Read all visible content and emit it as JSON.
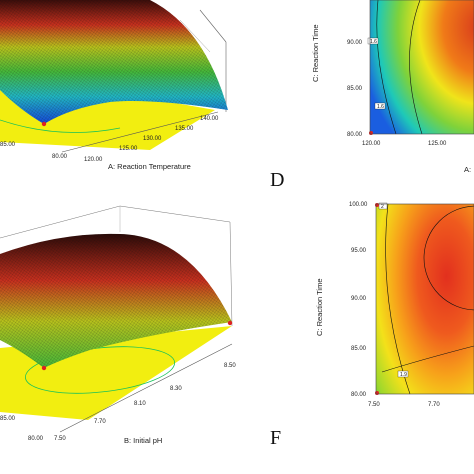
{
  "colors": {
    "surface_low": "#1446d8",
    "surface_mid": "#44b83a",
    "surface_high": "#c8301e",
    "surface_top": "#3a0d0a",
    "floor": "#f2ee10",
    "contour_red": "#e63222",
    "contour_green": "#17c25a",
    "mesh": "#0a0a0a"
  },
  "panels": {
    "top_left": {
      "x_axis_label": "A: Reaction Temperature",
      "x_ticks": [
        "120.00",
        "125.00",
        "130.00",
        "135.00",
        "140.00"
      ],
      "y_ticks": [
        "80.00",
        "85.00"
      ]
    },
    "top_right": {
      "y_axis_label": "C: Reaction Time",
      "y_ticks": [
        "80.00",
        "85.00",
        "90.00"
      ],
      "x_ticks": [
        "120.00",
        "125.00"
      ],
      "x_axis_label_partial": "A:",
      "contour_labels": [
        "1.6",
        "1.6"
      ]
    },
    "bottom_left": {
      "x_axis_label": "B: Initial pH",
      "x_ticks": [
        "7.50",
        "7.70",
        "8.10",
        "8.30",
        "8.50"
      ],
      "y_ticks": [
        "80.00",
        "85.00"
      ]
    },
    "bottom_right": {
      "y_axis_label": "C: Reaction Time",
      "y_ticks": [
        "80.00",
        "85.00",
        "90.00",
        "95.00",
        "100.00"
      ],
      "x_ticks": [
        "7.50",
        "7.70"
      ],
      "contour_labels": [
        "1.9",
        "2"
      ]
    },
    "letters": [
      "D",
      "F"
    ]
  },
  "chart_data": [
    {
      "type": "surface",
      "x_label": "A: Reaction Temperature",
      "x_ticks": [
        120,
        125,
        130,
        135,
        140
      ],
      "y_ticks": [
        80,
        85
      ]
    },
    {
      "type": "contour",
      "x_ticks": [
        120,
        125
      ],
      "y_label": "C: Reaction Time",
      "y_ticks": [
        80,
        85,
        90
      ],
      "contour_levels": [
        1.6,
        1.6
      ]
    },
    {
      "type": "surface",
      "x_label": "B: Initial pH",
      "x_ticks": [
        7.5,
        7.7,
        8.1,
        8.3,
        8.5
      ],
      "y_ticks": [
        80,
        85
      ]
    },
    {
      "type": "contour",
      "x_ticks": [
        7.5,
        7.7
      ],
      "y_label": "C: Reaction Time",
      "y_ticks": [
        80,
        85,
        90,
        95,
        100
      ],
      "contour_levels": [
        1.9,
        2
      ]
    }
  ]
}
